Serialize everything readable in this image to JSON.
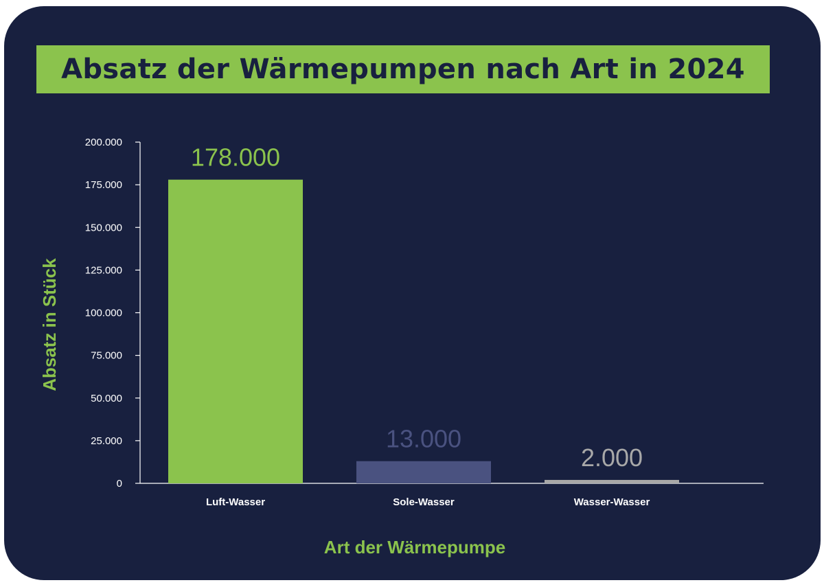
{
  "chart_data": {
    "type": "bar",
    "title": "Absatz der Wärmepumpen nach Art in 2024",
    "xlabel": "Art der Wärmepumpe",
    "ylabel": "Absatz in Stück",
    "categories": [
      "Luft-Wasser",
      "Sole-Wasser",
      "Wasser-Wasser"
    ],
    "values": [
      178000,
      13000,
      2000
    ],
    "value_labels": [
      "178.000",
      "13.000",
      "2.000"
    ],
    "bar_colors": [
      "#8bc34d",
      "#4a5280",
      "#a8a8a8"
    ],
    "value_label_colors": [
      "#8bc34d",
      "#4a5280",
      "#a8a8a8"
    ],
    "ylim": [
      0,
      200000
    ],
    "yticks": [
      0,
      25000,
      50000,
      75000,
      100000,
      125000,
      150000,
      175000,
      200000
    ],
    "ytick_labels": [
      "0",
      "25.000",
      "50.000",
      "75.000",
      "100.000",
      "125.000",
      "150.000",
      "175.000",
      "200.000"
    ],
    "grid": false,
    "legend": "none"
  },
  "colors": {
    "background": "#18203f",
    "accent": "#8bc34d",
    "axis": "#ffffff"
  }
}
